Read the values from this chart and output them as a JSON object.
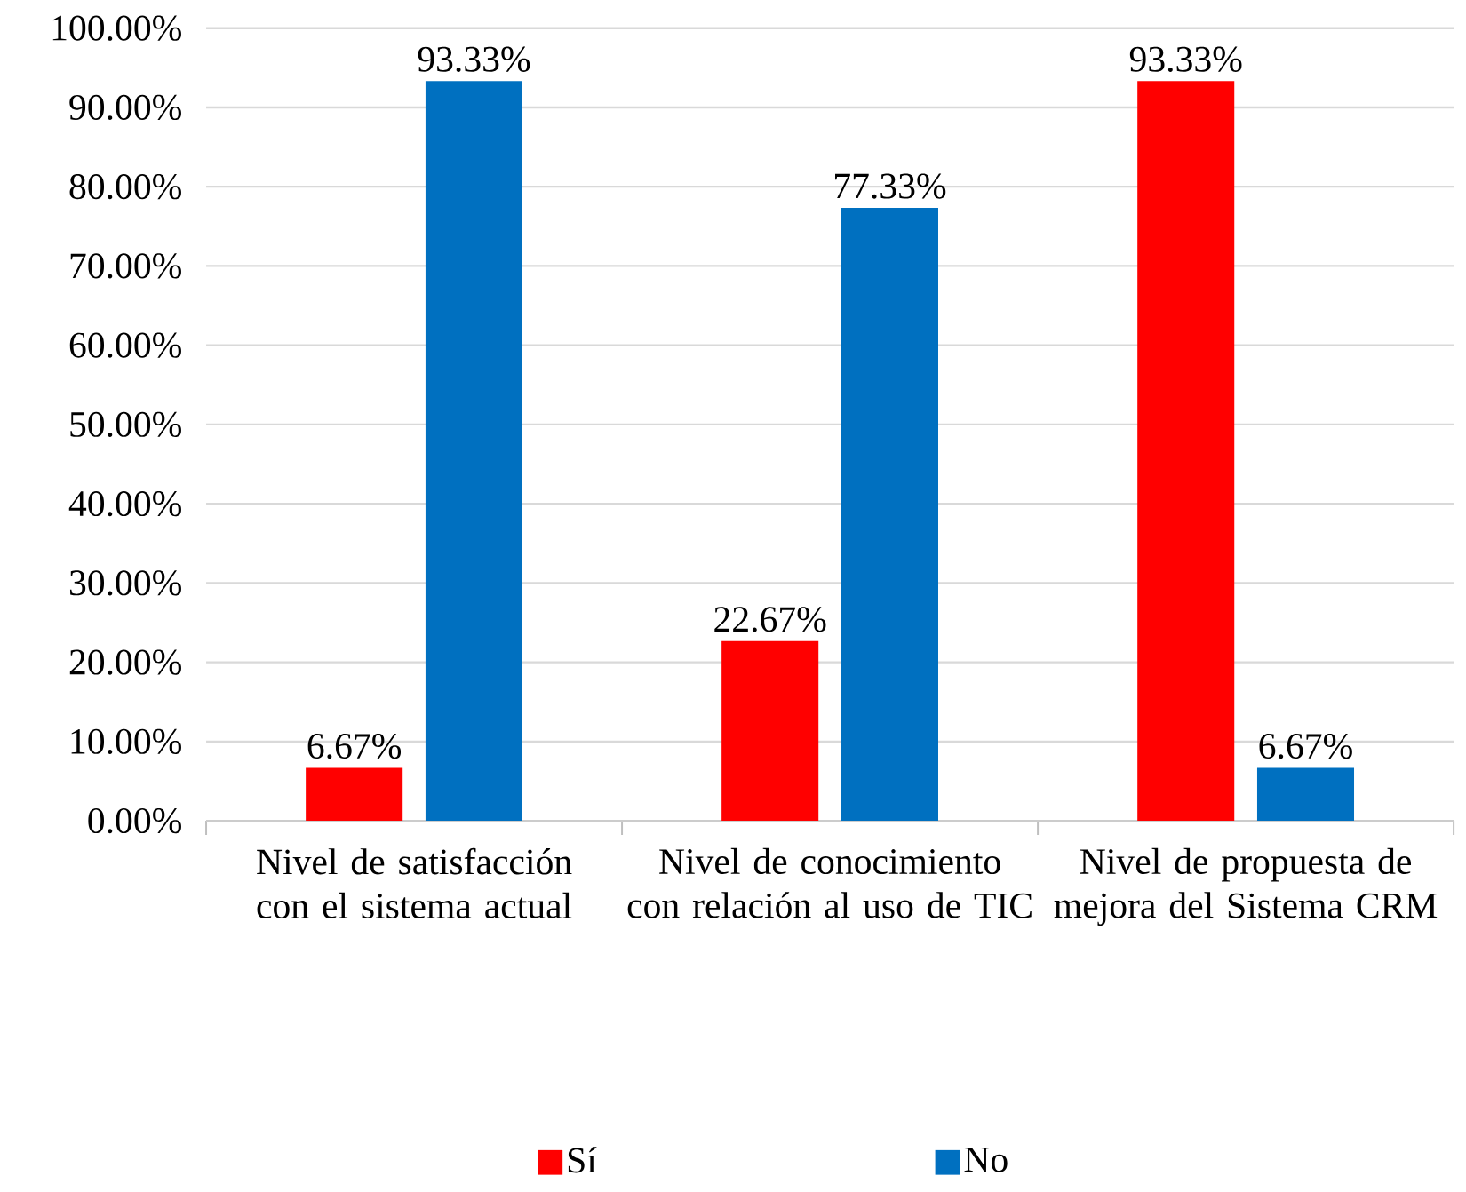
{
  "chart_data": {
    "type": "bar",
    "categories": [
      "Nivel de satisfacción con el sistema actual",
      "Nivel de conocimiento con relación al uso de TIC",
      "Nivel de propuesta de mejora del Sistema CRM"
    ],
    "series": [
      {
        "name": "Sí",
        "color": "#ff0000",
        "values": [
          6.67,
          22.67,
          93.33
        ],
        "value_labels": [
          "6.67%",
          "22.67%",
          "93.33%"
        ]
      },
      {
        "name": "No",
        "color": "#0070c0",
        "values": [
          93.33,
          77.33,
          6.67
        ],
        "value_labels": [
          "93.33%",
          "77.33%",
          "6.67%"
        ]
      }
    ],
    "ylim": [
      0,
      100
    ],
    "yticks": [
      {
        "value": 0,
        "label": "0.00%"
      },
      {
        "value": 10,
        "label": "10.00%"
      },
      {
        "value": 20,
        "label": "20.00%"
      },
      {
        "value": 30,
        "label": "30.00%"
      },
      {
        "value": 40,
        "label": "40.00%"
      },
      {
        "value": 50,
        "label": "50.00%"
      },
      {
        "value": 60,
        "label": "60.00%"
      },
      {
        "value": 70,
        "label": "70.00%"
      },
      {
        "value": 80,
        "label": "80.00%"
      },
      {
        "value": 90,
        "label": "90.00%"
      },
      {
        "value": 100,
        "label": "100.00%"
      }
    ],
    "grid": "y",
    "legend": "bottom"
  }
}
